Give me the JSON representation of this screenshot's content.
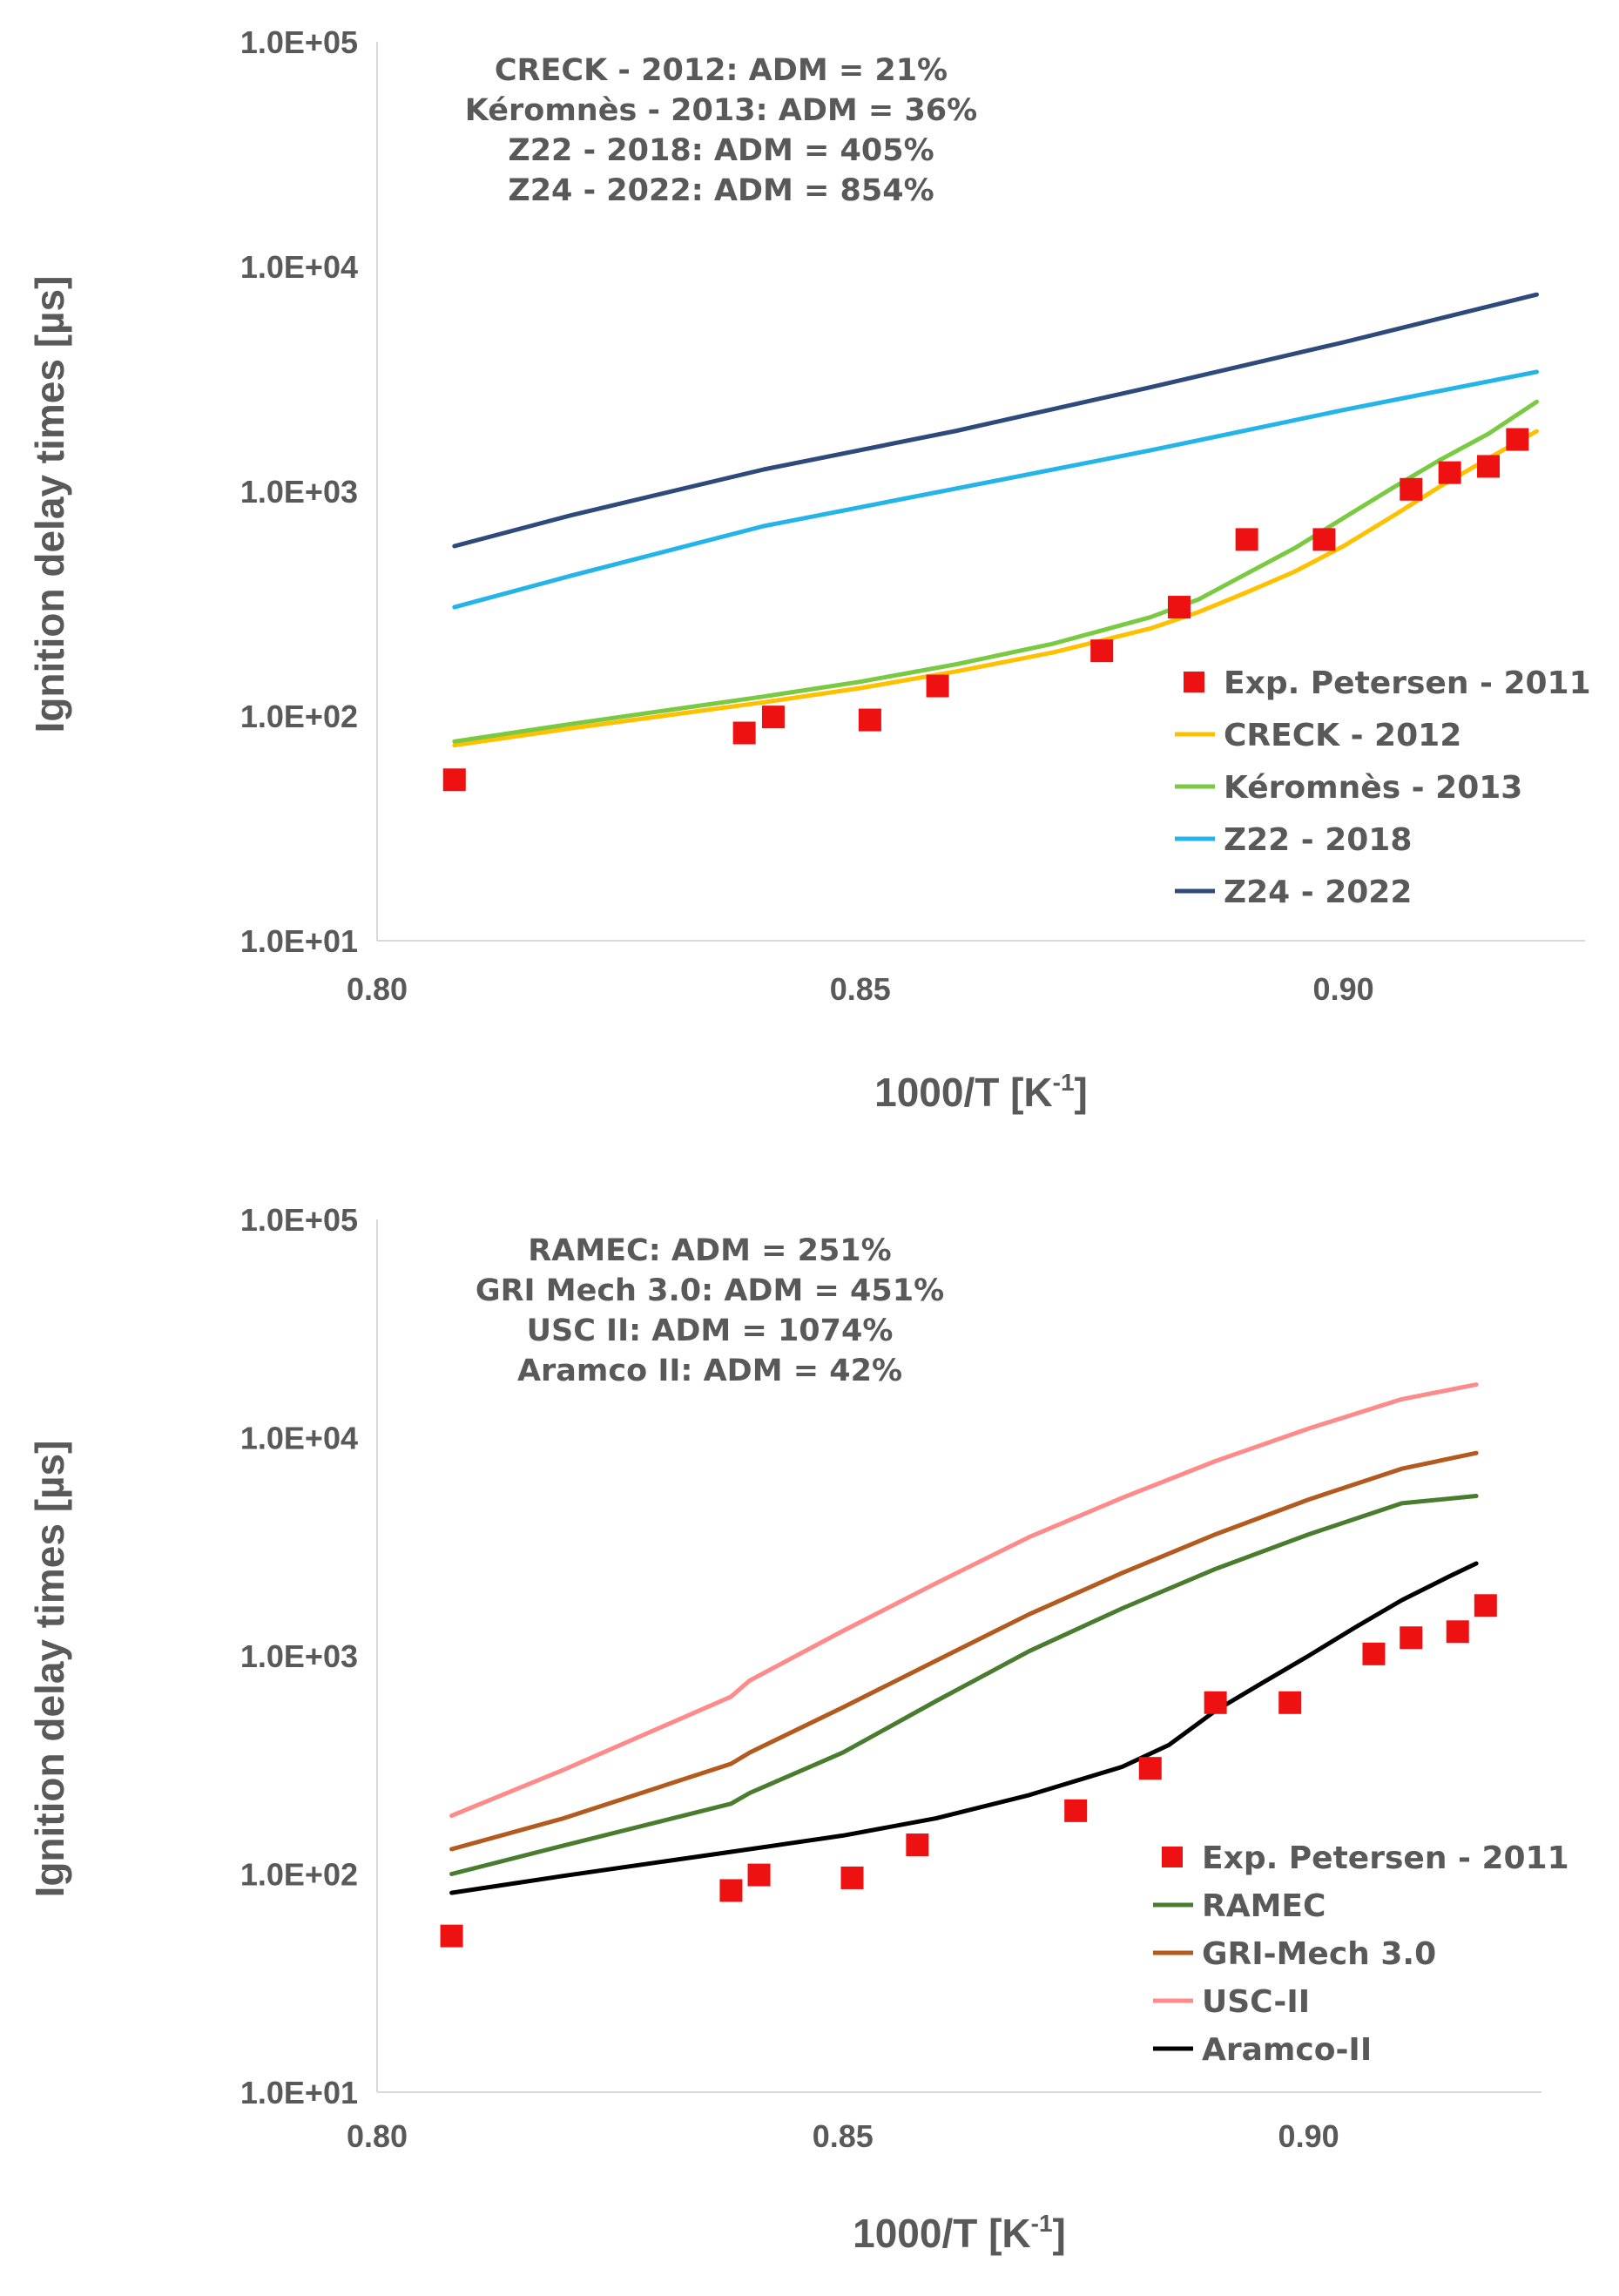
{
  "chart_data": [
    {
      "type": "line",
      "id": "top",
      "xlabel": "1000/T [K",
      "xlabel_sup": "-1",
      "xlabel_end": "]",
      "ylabel": "Ignition delay times [µs]",
      "xlim": [
        0.8,
        0.925
      ],
      "ylim": [
        10,
        100000
      ],
      "y_scale": "log",
      "x_ticks": [
        0.8,
        0.85,
        0.9
      ],
      "x_tick_labels": [
        "0.80",
        "0.85",
        "0.90"
      ],
      "y_ticks": [
        10,
        100,
        1000,
        10000,
        100000
      ],
      "y_tick_labels": [
        "1.0E+01",
        "1.0E+02",
        "1.0E+03",
        "1.0E+04",
        "1.0E+05"
      ],
      "annotations": [
        "CRECK - 2012: ADM = 21%",
        "Kéromnès - 2013: ADM = 36%",
        "Z22 - 2018: ADM = 405%",
        "Z24 - 2022: ADM = 854%"
      ],
      "legend_position": "bottom-right",
      "scatter": {
        "name": "Exp. Petersen - 2011",
        "color": "#ee1111",
        "x": [
          0.808,
          0.838,
          0.841,
          0.851,
          0.858,
          0.875,
          0.883,
          0.89,
          0.898,
          0.907,
          0.911,
          0.915,
          0.918
        ],
        "y": [
          52,
          84,
          99,
          96,
          136,
          195,
          305,
          610,
          610,
          1020,
          1210,
          1290,
          1700
        ]
      },
      "series": [
        {
          "name": "CRECK - 2012",
          "color": "#ffc000",
          "x": [
            0.808,
            0.82,
            0.84,
            0.85,
            0.86,
            0.87,
            0.88,
            0.885,
            0.89,
            0.895,
            0.9,
            0.905,
            0.91,
            0.915,
            0.92
          ],
          "y": [
            74,
            88,
            115,
            133,
            158,
            192,
            245,
            290,
            355,
            440,
            570,
            770,
            1050,
            1400,
            1850
          ]
        },
        {
          "name": "Kéromnès - 2013",
          "color": "#7ac943",
          "x": [
            0.808,
            0.82,
            0.84,
            0.85,
            0.86,
            0.87,
            0.88,
            0.885,
            0.89,
            0.895,
            0.9,
            0.905,
            0.91,
            0.915,
            0.92
          ],
          "y": [
            77,
            92,
            122,
            142,
            170,
            210,
            275,
            330,
            430,
            560,
            760,
            1030,
            1380,
            1800,
            2500
          ]
        },
        {
          "name": "Z22 - 2018",
          "color": "#24b4e8",
          "x": [
            0.808,
            0.82,
            0.84,
            0.86,
            0.88,
            0.9,
            0.92
          ],
          "y": [
            305,
            420,
            700,
            1030,
            1520,
            2300,
            3400
          ]
        },
        {
          "name": "Z24 - 2022",
          "color": "#2e4a7b",
          "x": [
            0.808,
            0.82,
            0.84,
            0.86,
            0.88,
            0.9,
            0.92
          ],
          "y": [
            570,
            780,
            1250,
            1860,
            2900,
            4600,
            7500
          ]
        }
      ]
    },
    {
      "type": "line",
      "id": "bottom",
      "xlabel": "1000/T [K",
      "xlabel_sup": "-1",
      "xlabel_end": "]",
      "ylabel": "Ignition delay times [µs]",
      "xlim": [
        0.8,
        0.925
      ],
      "ylim": [
        10,
        100000
      ],
      "y_scale": "log",
      "x_ticks": [
        0.8,
        0.85,
        0.9
      ],
      "x_tick_labels": [
        "0.80",
        "0.85",
        "0.90"
      ],
      "y_ticks": [
        10,
        100,
        1000,
        10000,
        100000
      ],
      "y_tick_labels": [
        "1.0E+01",
        "1.0E+02",
        "1.0E+03",
        "1.0E+04",
        "1.0E+05"
      ],
      "annotations": [
        "RAMEC: ADM = 251%",
        "GRI Mech 3.0: ADM = 451%",
        "USC II: ADM = 1074%",
        "Aramco II: ADM = 42%"
      ],
      "legend_position": "bottom-right",
      "scatter": {
        "name": "Exp. Petersen - 2011",
        "color": "#ee1111",
        "x": [
          0.808,
          0.838,
          0.841,
          0.851,
          0.858,
          0.875,
          0.883,
          0.89,
          0.898,
          0.907,
          0.911,
          0.916,
          0.919
        ],
        "y": [
          52,
          84,
          99,
          96,
          136,
          195,
          305,
          610,
          610,
          1020,
          1210,
          1290,
          1700
        ]
      },
      "series": [
        {
          "name": "RAMEC",
          "color": "#4a7c2f",
          "x": [
            0.808,
            0.82,
            0.838,
            0.84,
            0.85,
            0.86,
            0.87,
            0.88,
            0.89,
            0.9,
            0.91,
            0.918
          ],
          "y": [
            100,
            135,
            210,
            235,
            360,
            620,
            1050,
            1650,
            2500,
            3600,
            5000,
            5400
          ]
        },
        {
          "name": "GRI-Mech 3.0",
          "color": "#b35a1f",
          "x": [
            0.808,
            0.82,
            0.838,
            0.84,
            0.85,
            0.86,
            0.87,
            0.88,
            0.89,
            0.9,
            0.91,
            0.918
          ],
          "y": [
            130,
            180,
            320,
            360,
            580,
            950,
            1550,
            2400,
            3600,
            5200,
            7200,
            8500
          ]
        },
        {
          "name": "USC-II",
          "color": "#ff8a8a",
          "x": [
            0.808,
            0.82,
            0.838,
            0.84,
            0.85,
            0.86,
            0.87,
            0.88,
            0.89,
            0.9,
            0.91,
            0.918
          ],
          "y": [
            185,
            300,
            650,
            770,
            1300,
            2150,
            3500,
            5300,
            7800,
            11000,
            15000,
            17500
          ]
        },
        {
          "name": "Aramco-II",
          "color": "#000000",
          "x": [
            0.808,
            0.82,
            0.84,
            0.85,
            0.86,
            0.87,
            0.88,
            0.885,
            0.89,
            0.895,
            0.9,
            0.905,
            0.91,
            0.915,
            0.918
          ],
          "y": [
            82,
            98,
            130,
            150,
            180,
            230,
            310,
            390,
            560,
            750,
            1000,
            1350,
            1800,
            2300,
            2650
          ]
        }
      ]
    }
  ]
}
